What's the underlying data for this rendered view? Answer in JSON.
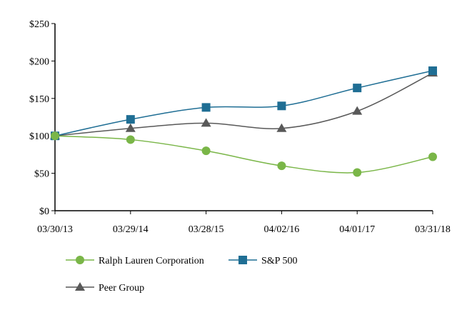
{
  "chart_data": {
    "type": "line",
    "title": "",
    "xlabel": "",
    "ylabel": "",
    "categories": [
      "03/30/13",
      "03/29/14",
      "03/28/15",
      "04/02/16",
      "04/01/17",
      "03/31/18"
    ],
    "ylim": [
      0,
      250
    ],
    "yticks": [
      0,
      50,
      100,
      150,
      200,
      250
    ],
    "ytick_labels": [
      "$0",
      "$50",
      "$100",
      "$150",
      "$200",
      "$250"
    ],
    "grid": false,
    "legend_position": "bottom",
    "series": [
      {
        "name": "Ralph Lauren Corporation",
        "values": [
          100,
          95,
          80,
          60,
          51,
          72
        ],
        "color": "#7ab648",
        "marker": "circle"
      },
      {
        "name": "S&P 500",
        "values": [
          100,
          122,
          138,
          140,
          164,
          187
        ],
        "color": "#1f6e94",
        "marker": "square"
      },
      {
        "name": "Peer Group",
        "values": [
          100,
          110,
          117,
          110,
          133,
          184
        ],
        "color": "#595959",
        "marker": "triangle"
      }
    ]
  }
}
